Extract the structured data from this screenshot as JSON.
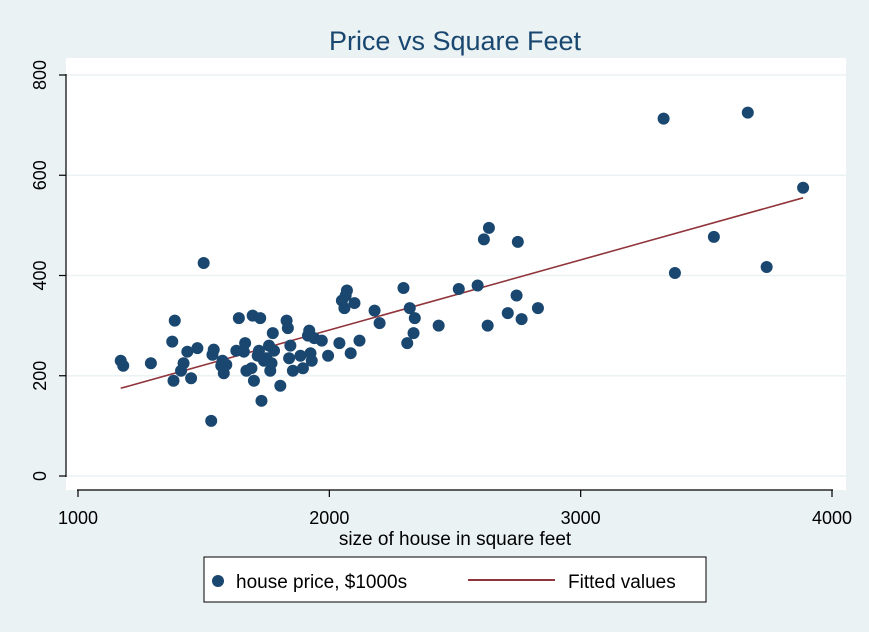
{
  "chart_data": {
    "type": "scatter",
    "title": "Price vs Square Feet",
    "xlabel": "size of house in square feet",
    "ylabel": "",
    "xlim": [
      1000,
      4000
    ],
    "ylim": [
      0,
      800
    ],
    "xticks": [
      1000,
      2000,
      3000,
      4000
    ],
    "yticks": [
      0,
      200,
      400,
      600,
      800
    ],
    "grid": true,
    "legend_position": "bottom",
    "colors": {
      "background": "#eaf2f3",
      "plot_background": "#ffffff",
      "points": "#1a476f",
      "fit_line": "#90353b",
      "title": "#1a476f",
      "grid": "#eaf2f3"
    },
    "series": [
      {
        "name": "house price, $1000s",
        "kind": "scatter",
        "points": [
          [
            1170,
            230
          ],
          [
            1180,
            220
          ],
          [
            1290,
            225
          ],
          [
            1375,
            268
          ],
          [
            1380,
            190
          ],
          [
            1385,
            310
          ],
          [
            1410,
            210
          ],
          [
            1420,
            225
          ],
          [
            1435,
            248
          ],
          [
            1450,
            195
          ],
          [
            1475,
            255
          ],
          [
            1500,
            425
          ],
          [
            1530,
            110
          ],
          [
            1535,
            242
          ],
          [
            1540,
            252
          ],
          [
            1570,
            220
          ],
          [
            1575,
            230
          ],
          [
            1580,
            205
          ],
          [
            1590,
            222
          ],
          [
            1630,
            250
          ],
          [
            1640,
            315
          ],
          [
            1660,
            248
          ],
          [
            1665,
            265
          ],
          [
            1670,
            210
          ],
          [
            1690,
            215
          ],
          [
            1695,
            320
          ],
          [
            1700,
            190
          ],
          [
            1715,
            240
          ],
          [
            1720,
            250
          ],
          [
            1725,
            315
          ],
          [
            1730,
            150
          ],
          [
            1740,
            230
          ],
          [
            1750,
            235
          ],
          [
            1760,
            260
          ],
          [
            1765,
            210
          ],
          [
            1770,
            225
          ],
          [
            1775,
            285
          ],
          [
            1780,
            250
          ],
          [
            1805,
            180
          ],
          [
            1830,
            310
          ],
          [
            1835,
            295
          ],
          [
            1840,
            235
          ],
          [
            1845,
            260
          ],
          [
            1855,
            210
          ],
          [
            1885,
            240
          ],
          [
            1895,
            215
          ],
          [
            1915,
            280
          ],
          [
            1920,
            290
          ],
          [
            1925,
            245
          ],
          [
            1930,
            230
          ],
          [
            1940,
            275
          ],
          [
            1970,
            270
          ],
          [
            1995,
            240
          ],
          [
            2040,
            265
          ],
          [
            2050,
            350
          ],
          [
            2060,
            335
          ],
          [
            2065,
            360
          ],
          [
            2070,
            370
          ],
          [
            2085,
            245
          ],
          [
            2100,
            345
          ],
          [
            2120,
            270
          ],
          [
            2180,
            330
          ],
          [
            2200,
            305
          ],
          [
            2295,
            375
          ],
          [
            2310,
            265
          ],
          [
            2320,
            335
          ],
          [
            2335,
            285
          ],
          [
            2340,
            315
          ],
          [
            2435,
            300
          ],
          [
            2515,
            373
          ],
          [
            2590,
            380
          ],
          [
            2615,
            472
          ],
          [
            2630,
            300
          ],
          [
            2635,
            495
          ],
          [
            2710,
            325
          ],
          [
            2745,
            360
          ],
          [
            2750,
            467
          ],
          [
            2765,
            313
          ],
          [
            2830,
            335
          ],
          [
            3330,
            713
          ],
          [
            3375,
            405
          ],
          [
            3530,
            477
          ],
          [
            3665,
            725
          ],
          [
            3740,
            417
          ],
          [
            3885,
            575
          ]
        ]
      },
      {
        "name": "Fitted values",
        "kind": "line",
        "points": [
          [
            1170,
            175
          ],
          [
            3885,
            555
          ]
        ]
      }
    ]
  }
}
